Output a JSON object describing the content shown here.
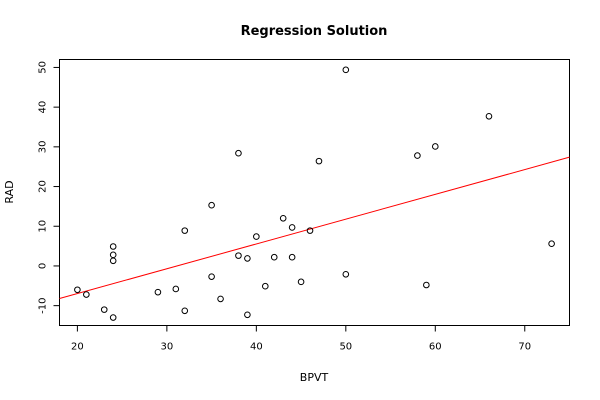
{
  "chart_data": {
    "type": "scatter",
    "title": "Regression Solution",
    "xlabel": "BPVT",
    "ylabel": "RAD",
    "xlim": [
      18,
      75
    ],
    "ylim": [
      -15,
      52
    ],
    "x_ticks": [
      20,
      30,
      40,
      50,
      60,
      70
    ],
    "y_ticks": [
      -10,
      0,
      10,
      20,
      30,
      40,
      50
    ],
    "grid": false,
    "points": [
      {
        "x": 20,
        "y": -6
      },
      {
        "x": 21,
        "y": -7.2
      },
      {
        "x": 23,
        "y": -11
      },
      {
        "x": 24,
        "y": -13
      },
      {
        "x": 24,
        "y": 1.3
      },
      {
        "x": 24,
        "y": 2.8
      },
      {
        "x": 24,
        "y": 4.9
      },
      {
        "x": 29,
        "y": -6.6
      },
      {
        "x": 31,
        "y": -5.8
      },
      {
        "x": 32,
        "y": -11.3
      },
      {
        "x": 32,
        "y": 8.9
      },
      {
        "x": 35,
        "y": -2.7
      },
      {
        "x": 35,
        "y": 15.3
      },
      {
        "x": 36,
        "y": -8.3
      },
      {
        "x": 38,
        "y": 2.6
      },
      {
        "x": 38,
        "y": 28.4
      },
      {
        "x": 39,
        "y": 1.9
      },
      {
        "x": 39,
        "y": -12.3
      },
      {
        "x": 40,
        "y": 7.4
      },
      {
        "x": 41,
        "y": -5.1
      },
      {
        "x": 42,
        "y": 2.2
      },
      {
        "x": 43,
        "y": 12
      },
      {
        "x": 44,
        "y": 9.7
      },
      {
        "x": 44,
        "y": 2.2
      },
      {
        "x": 45,
        "y": -4
      },
      {
        "x": 46,
        "y": 8.9
      },
      {
        "x": 47,
        "y": 26.4
      },
      {
        "x": 50,
        "y": 49.4
      },
      {
        "x": 50,
        "y": -2.1
      },
      {
        "x": 58,
        "y": 27.8
      },
      {
        "x": 59,
        "y": -4.8
      },
      {
        "x": 60,
        "y": 30.1
      },
      {
        "x": 66,
        "y": 37.7
      },
      {
        "x": 73,
        "y": 5.6
      }
    ],
    "regression_line": {
      "x": [
        18,
        75
      ],
      "y": [
        -8.2,
        27.4
      ],
      "color": "#ff0000"
    },
    "point_color": "#000000"
  }
}
